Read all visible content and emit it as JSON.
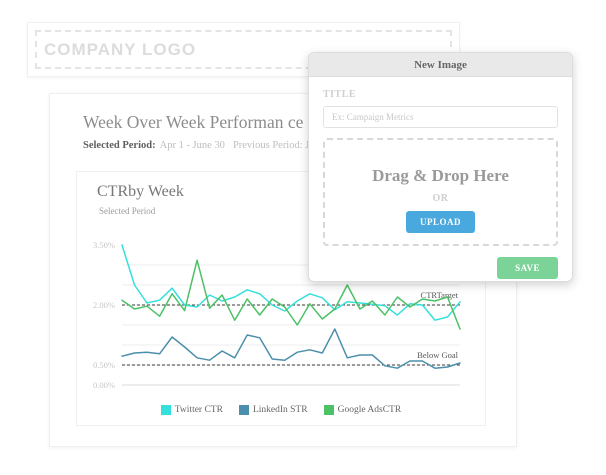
{
  "logo": {
    "text": "COMPANY LOGO"
  },
  "report": {
    "title": "Week Over Week Performan ce S",
    "selected_period_label": "Selected Period:",
    "selected_period_value": "Apr 1 - June 30",
    "previous_period_text": "Previous Period: Jan"
  },
  "chart_data": {
    "type": "line",
    "title": "CTRby Week",
    "subtitle": "Selected Period",
    "ylim": [
      0,
      3.5
    ],
    "grid": true,
    "gridline_step": 0.5,
    "legend_position": "bottom",
    "yticks": [
      {
        "value": 3.5,
        "label": "3.50%"
      },
      {
        "value": 2.0,
        "label": "2.00%"
      },
      {
        "value": 0.5,
        "label": "0.50%"
      },
      {
        "value": 0.0,
        "label": "0.00%"
      }
    ],
    "thresholds": [
      {
        "label": "CTRTarget",
        "value": 2.0
      },
      {
        "label": "Below Goal",
        "value": 0.5
      }
    ],
    "series": [
      {
        "name": "Twitter CTR",
        "color": "#34e0db",
        "values": [
          3.5,
          2.5,
          2.05,
          2.12,
          2.42,
          2.0,
          1.95,
          2.25,
          2.1,
          2.2,
          2.38,
          2.28,
          2.0,
          1.85,
          2.1,
          2.28,
          2.18,
          1.88,
          2.08,
          2.05,
          2.02,
          1.98,
          1.75,
          2.03,
          2.0,
          1.62,
          1.7,
          2.08
        ]
      },
      {
        "name": "LinkedIn STR",
        "color": "#4c8fac",
        "values": [
          0.72,
          0.8,
          0.82,
          0.78,
          1.2,
          0.95,
          0.68,
          0.62,
          0.85,
          0.68,
          1.25,
          1.18,
          0.65,
          0.62,
          0.82,
          0.88,
          0.8,
          1.4,
          0.68,
          0.75,
          0.75,
          0.48,
          0.42,
          0.6,
          0.6,
          0.42,
          0.45,
          0.55
        ]
      },
      {
        "name": "Google AdsCTR",
        "color": "#4cc166",
        "values": [
          2.12,
          1.9,
          1.97,
          1.72,
          2.28,
          1.86,
          3.12,
          1.92,
          2.25,
          1.62,
          2.15,
          1.75,
          2.15,
          1.95,
          1.5,
          2.03,
          1.65,
          1.9,
          2.5,
          1.9,
          2.1,
          1.75,
          2.2,
          1.95,
          2.15,
          2.1,
          2.2,
          1.4
        ]
      }
    ]
  },
  "modal": {
    "title": "New Image",
    "field_label": "TITLE",
    "field_placeholder": "Ex: Campaign Metrics",
    "dropzone_text": "Drag & Drop Here",
    "or_text": "OR",
    "upload_label": "UPLOAD",
    "save_label": "SAVE",
    "colors": {
      "upload_button": "#49a8de",
      "save_button": "#7bd398"
    }
  }
}
